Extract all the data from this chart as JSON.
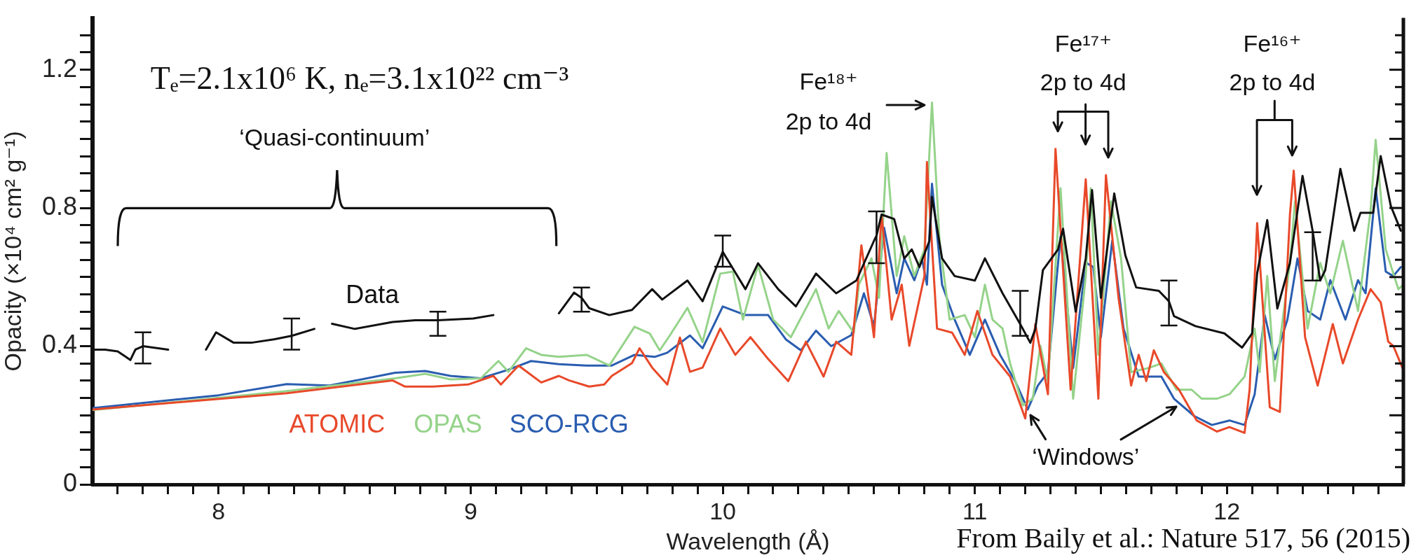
{
  "chart_data": {
    "type": "line",
    "title": "Tₑ=2.1x10⁶ K, nₑ=3.1x10²² cm⁻³",
    "xlabel": "Wavelength (Å)",
    "ylabel": "Opacity (×10⁴ cm² g⁻¹)",
    "xlim": [
      7.5,
      12.7
    ],
    "xticks": [
      {
        "value": 7.6,
        "label": null
      },
      {
        "value": 7.7,
        "label": null
      },
      {
        "value": 7.8,
        "label": null
      },
      {
        "value": 7.9,
        "label": null
      },
      8,
      {
        "value": 8.1,
        "label": null
      },
      {
        "value": 8.2,
        "label": null
      },
      {
        "value": 8.3,
        "label": null
      },
      {
        "value": 8.4,
        "label": null
      },
      {
        "value": 8.5,
        "label": null
      },
      {
        "value": 8.6,
        "label": null
      },
      {
        "value": 8.7,
        "label": null
      },
      {
        "value": 8.8,
        "label": null
      },
      {
        "value": 8.9,
        "label": null
      },
      9,
      {
        "value": 9.1,
        "label": null
      },
      {
        "value": 9.2,
        "label": null
      },
      {
        "value": 9.3,
        "label": null
      },
      {
        "value": 9.4,
        "label": null
      },
      {
        "value": 9.5,
        "label": null
      },
      {
        "value": 9.6,
        "label": null
      },
      {
        "value": 9.7,
        "label": null
      },
      {
        "value": 9.8,
        "label": null
      },
      {
        "value": 9.9,
        "label": null
      },
      10,
      {
        "value": 10.1,
        "label": null
      },
      {
        "value": 10.2,
        "label": null
      },
      {
        "value": 10.3,
        "label": null
      },
      {
        "value": 10.4,
        "label": null
      },
      {
        "value": 10.5,
        "label": null
      },
      {
        "value": 10.6,
        "label": null
      },
      {
        "value": 10.7,
        "label": null
      },
      {
        "value": 10.8,
        "label": null
      },
      {
        "value": 10.9,
        "label": null
      },
      11,
      {
        "value": 11.1,
        "label": null
      },
      {
        "value": 11.2,
        "label": null
      },
      {
        "value": 11.3,
        "label": null
      },
      {
        "value": 11.4,
        "label": null
      },
      {
        "value": 11.5,
        "label": null
      },
      {
        "value": 11.6,
        "label": null
      },
      {
        "value": 11.7,
        "label": null
      },
      {
        "value": 11.8,
        "label": null
      },
      {
        "value": 11.9,
        "label": null
      },
      12,
      {
        "value": 12.1,
        "label": null
      },
      {
        "value": 12.2,
        "label": null
      },
      {
        "value": 12.3,
        "label": null
      },
      {
        "value": 12.4,
        "label": null
      },
      {
        "value": 12.5,
        "label": null
      },
      {
        "value": 12.6,
        "label": null
      }
    ],
    "ylim": [
      0,
      1.35
    ],
    "yticks": [
      {
        "value": 0,
        "label": "0"
      },
      {
        "value": 0.05,
        "label": null
      },
      {
        "value": 0.1,
        "label": null
      },
      {
        "value": 0.15,
        "label": null
      },
      {
        "value": 0.2,
        "label": null
      },
      {
        "value": 0.25,
        "label": null
      },
      {
        "value": 0.3,
        "label": null
      },
      {
        "value": 0.35,
        "label": null
      },
      0.4,
      {
        "value": 0.45,
        "label": null
      },
      {
        "value": 0.5,
        "label": null
      },
      {
        "value": 0.55,
        "label": null
      },
      {
        "value": 0.6,
        "label": null
      },
      {
        "value": 0.65,
        "label": null
      },
      {
        "value": 0.7,
        "label": null
      },
      {
        "value": 0.75,
        "label": null
      },
      0.8,
      {
        "value": 0.85,
        "label": null
      },
      {
        "value": 0.9,
        "label": null
      },
      {
        "value": 0.95,
        "label": null
      },
      {
        "value": 1.0,
        "label": null
      },
      {
        "value": 1.05,
        "label": null
      },
      {
        "value": 1.1,
        "label": null
      },
      {
        "value": 1.15,
        "label": null
      },
      1.2,
      {
        "value": 1.25,
        "label": null
      },
      {
        "value": 1.3,
        "label": null
      }
    ],
    "marker": "none",
    "line_style": "solid",
    "series": [
      {
        "name": "Data",
        "color": "#111111",
        "x": [
          7.51,
          7.55,
          7.6,
          7.63,
          7.65,
          7.67,
          7.7,
          7.75,
          7.8,
          7.87,
          7.95,
          7.99,
          8.06,
          8.13,
          8.22,
          8.29,
          8.38,
          8.42,
          8.45,
          8.54,
          8.69,
          8.78,
          8.87,
          9.01,
          9.09,
          9.2,
          9.35,
          9.41,
          9.44,
          9.47,
          9.55,
          9.64,
          9.72,
          9.76,
          9.86,
          9.92,
          10.0,
          10.09,
          10.14,
          10.22,
          10.29,
          10.37,
          10.45,
          10.53,
          10.6,
          10.61,
          10.63,
          10.68,
          10.72,
          10.75,
          10.78,
          10.82,
          10.83,
          10.87,
          10.92,
          11.0,
          11.04,
          11.11,
          11.18,
          11.22,
          11.24,
          11.27,
          11.33,
          11.35,
          11.4,
          11.44,
          11.465,
          11.5,
          11.553,
          11.597,
          11.64,
          11.73,
          11.77,
          11.79,
          11.875,
          11.99,
          12.06,
          12.1,
          12.12,
          12.16,
          12.2,
          12.25,
          12.3,
          12.34,
          12.37,
          12.39,
          12.42,
          12.45,
          12.505,
          12.53,
          12.58,
          12.61,
          12.65,
          12.69
        ],
        "values": [
          0.39,
          0.39,
          0.385,
          0.37,
          0.36,
          0.39,
          0.4,
          0.395,
          0.39,
          null,
          0.39,
          0.44,
          0.41,
          0.41,
          0.42,
          0.43,
          0.45,
          null,
          0.465,
          0.45,
          0.47,
          0.475,
          0.475,
          0.48,
          0.49,
          null,
          0.495,
          0.555,
          0.54,
          0.51,
          0.49,
          0.505,
          0.565,
          0.535,
          0.59,
          0.53,
          0.673,
          0.565,
          0.64,
          0.565,
          0.515,
          0.61,
          0.553,
          0.59,
          0.705,
          0.72,
          0.781,
          0.768,
          0.654,
          0.68,
          0.629,
          0.705,
          0.832,
          0.654,
          0.603,
          0.59,
          0.654,
          0.553,
          0.464,
          0.41,
          0.45,
          0.62,
          0.68,
          0.74,
          0.5,
          0.654,
          0.852,
          0.54,
          0.842,
          0.663,
          0.57,
          0.56,
          0.53,
          0.487,
          0.458,
          0.437,
          0.396,
          0.437,
          0.611,
          0.765,
          0.509,
          0.641,
          0.893,
          0.734,
          0.59,
          0.62,
          0.765,
          0.913,
          0.734,
          0.786,
          0.786,
          0.95,
          0.806,
          0.734
        ],
        "errors": [
          null,
          null,
          null,
          null,
          null,
          null,
          [
            0.35,
            0.44
          ],
          null,
          null,
          null,
          null,
          null,
          null,
          null,
          null,
          [
            0.39,
            0.48
          ],
          null,
          null,
          null,
          null,
          null,
          null,
          [
            0.43,
            0.5
          ],
          null,
          null,
          null,
          null,
          null,
          [
            0.5,
            0.57
          ],
          null,
          null,
          null,
          null,
          null,
          null,
          null,
          [
            0.63,
            0.72
          ],
          null,
          null,
          null,
          null,
          null,
          null,
          null,
          null,
          [
            0.64,
            0.79
          ],
          null,
          null,
          null,
          null,
          null,
          null,
          null,
          null,
          null,
          null,
          null,
          null,
          [
            0.43,
            0.56
          ],
          null,
          null,
          null,
          null,
          null,
          null,
          null,
          null,
          null,
          null,
          null,
          null,
          null,
          [
            0.46,
            0.59
          ],
          null,
          null,
          null,
          null,
          null,
          null,
          null,
          null,
          null,
          null,
          [
            0.59,
            0.73
          ],
          null,
          null,
          null,
          null,
          null,
          null,
          null,
          null,
          null,
          null
        ]
      },
      {
        "name": "ATOMIC",
        "color": "#e8492a",
        "x": [
          7.5,
          8.27,
          8.69,
          8.74,
          8.85,
          8.99,
          9.09,
          9.12,
          9.19,
          9.28,
          9.35,
          9.39,
          9.47,
          9.53,
          9.56,
          9.64,
          9.67,
          9.72,
          9.78,
          9.83,
          9.87,
          9.92,
          9.99,
          10.05,
          10.11,
          10.18,
          10.26,
          10.33,
          10.4,
          10.45,
          10.51,
          10.55,
          10.6,
          10.63,
          10.67,
          10.71,
          10.74,
          10.8,
          10.81,
          10.85,
          10.91,
          10.96,
          11.01,
          11.07,
          11.14,
          11.2,
          11.24,
          11.29,
          11.32,
          11.38,
          11.44,
          11.49,
          11.52,
          11.57,
          11.62,
          11.65,
          11.68,
          11.71,
          11.75,
          11.81,
          11.88,
          11.96,
          12.01,
          12.07,
          12.09,
          12.12,
          12.17,
          12.21,
          12.25,
          12.265,
          12.31,
          12.36,
          12.42,
          12.46,
          12.52,
          12.57,
          12.61,
          12.64,
          12.66,
          12.7
        ],
        "values": [
          0.217,
          0.264,
          0.301,
          0.283,
          0.283,
          0.289,
          0.314,
          0.289,
          0.344,
          0.295,
          0.314,
          0.301,
          0.283,
          0.289,
          0.314,
          0.351,
          0.394,
          0.338,
          0.289,
          0.425,
          0.326,
          0.338,
          0.451,
          0.375,
          0.426,
          0.363,
          0.299,
          0.413,
          0.312,
          0.413,
          0.375,
          0.692,
          0.426,
          0.781,
          0.477,
          0.578,
          0.401,
          0.603,
          0.933,
          0.451,
          0.439,
          0.375,
          0.502,
          0.375,
          0.312,
          0.191,
          0.464,
          0.261,
          0.971,
          0.274,
          0.883,
          0.248,
          0.895,
          0.54,
          0.286,
          0.375,
          0.299,
          0.388,
          0.325,
          0.274,
          0.185,
          0.153,
          0.166,
          0.149,
          0.274,
          0.756,
          0.223,
          0.21,
          0.781,
          0.908,
          0.426,
          0.286,
          0.464,
          0.35,
          0.477,
          0.565,
          0.527,
          0.413,
          0.401,
          0.331
        ]
      },
      {
        "name": "OPAS",
        "color": "#95d38a",
        "x": [
          7.5,
          8.27,
          8.7,
          8.82,
          8.92,
          9.04,
          9.11,
          9.15,
          9.22,
          9.28,
          9.35,
          9.46,
          9.55,
          9.65,
          9.71,
          9.75,
          9.79,
          9.86,
          9.92,
          9.99,
          10.04,
          10.08,
          10.14,
          10.2,
          10.27,
          10.37,
          10.42,
          10.46,
          10.52,
          10.54,
          10.59,
          10.62,
          10.65,
          10.69,
          10.72,
          10.76,
          10.8,
          10.83,
          10.86,
          10.9,
          10.96,
          11.0,
          11.04,
          11.07,
          11.11,
          11.14,
          11.19,
          11.23,
          11.26,
          11.29,
          11.34,
          11.39,
          11.44,
          11.46,
          11.49,
          11.54,
          11.58,
          11.62,
          11.69,
          11.74,
          11.8,
          11.86,
          11.9,
          11.96,
          12.01,
          12.07,
          12.11,
          12.13,
          12.16,
          12.19,
          12.25,
          12.27,
          12.32,
          12.37,
          12.41,
          12.46,
          12.52,
          12.57,
          12.59,
          12.63,
          12.68,
          12.7
        ],
        "values": [
          0.215,
          0.27,
          0.307,
          0.32,
          0.304,
          0.307,
          0.357,
          0.326,
          0.394,
          0.375,
          0.369,
          0.375,
          0.344,
          0.456,
          0.437,
          0.388,
          0.431,
          0.511,
          0.412,
          0.61,
          0.616,
          0.477,
          0.635,
          0.477,
          0.426,
          0.565,
          0.451,
          0.502,
          0.439,
          0.578,
          0.654,
          0.54,
          0.959,
          0.603,
          0.718,
          0.603,
          0.68,
          1.105,
          0.705,
          0.477,
          0.49,
          0.426,
          0.578,
          0.477,
          0.451,
          0.35,
          0.229,
          0.248,
          0.401,
          0.299,
          0.857,
          0.248,
          0.603,
          0.857,
          0.375,
          0.819,
          0.654,
          0.325,
          0.337,
          0.35,
          0.274,
          0.274,
          0.248,
          0.248,
          0.261,
          0.312,
          0.451,
          0.325,
          0.603,
          0.299,
          0.641,
          0.819,
          0.451,
          0.641,
          0.553,
          0.705,
          0.502,
          0.794,
          0.997,
          0.68,
          0.565,
          0.578
        ]
      },
      {
        "name": "SCO-RCG",
        "color": "#2a5db0",
        "x": [
          7.5,
          8.0,
          8.27,
          8.44,
          8.7,
          8.82,
          8.92,
          9.04,
          9.15,
          9.24,
          9.35,
          9.46,
          9.56,
          9.65,
          9.73,
          9.78,
          9.87,
          9.92,
          10.0,
          10.09,
          10.18,
          10.25,
          10.31,
          10.37,
          10.43,
          10.51,
          10.56,
          10.6,
          10.64,
          10.69,
          10.72,
          10.76,
          10.79,
          10.81,
          10.83,
          10.87,
          10.92,
          10.98,
          11.04,
          11.1,
          11.16,
          11.21,
          11.25,
          11.29,
          11.34,
          11.39,
          11.44,
          11.47,
          11.5,
          11.545,
          11.59,
          11.65,
          11.74,
          11.79,
          11.87,
          11.94,
          12.01,
          12.07,
          12.11,
          12.15,
          12.19,
          12.24,
          12.28,
          12.32,
          12.37,
          12.41,
          12.47,
          12.52,
          12.55,
          12.59,
          12.63,
          12.66,
          12.69
        ],
        "values": [
          0.221,
          0.258,
          0.29,
          0.286,
          0.323,
          0.328,
          0.314,
          0.307,
          0.332,
          0.357,
          0.348,
          0.344,
          0.344,
          0.375,
          0.369,
          0.381,
          0.431,
          0.394,
          0.515,
          0.49,
          0.49,
          0.42,
          0.388,
          0.445,
          0.4,
          0.432,
          0.553,
          0.457,
          0.743,
          0.553,
          0.654,
          0.591,
          0.654,
          0.578,
          0.87,
          0.578,
          0.477,
          0.375,
          0.477,
          0.375,
          0.299,
          0.217,
          0.286,
          0.325,
          0.718,
          0.337,
          0.642,
          0.629,
          0.426,
          0.705,
          0.451,
          0.312,
          0.312,
          0.248,
          0.198,
          0.172,
          0.185,
          0.172,
          0.261,
          0.49,
          0.362,
          0.477,
          0.654,
          0.502,
          0.477,
          0.591,
          0.477,
          0.591,
          0.553,
          0.857,
          0.616,
          0.603,
          0.629
        ]
      }
    ],
    "annotations": [
      "‘Quasi-continuum’",
      "Fe¹⁸⁺\n2p to 4d",
      "Fe¹⁷⁺\n2p to 4d",
      "Fe¹⁶⁺\n2p to 4d",
      "‘Windows’",
      "From Baily et al.: Nature 517, 56 (2015)"
    ]
  }
}
